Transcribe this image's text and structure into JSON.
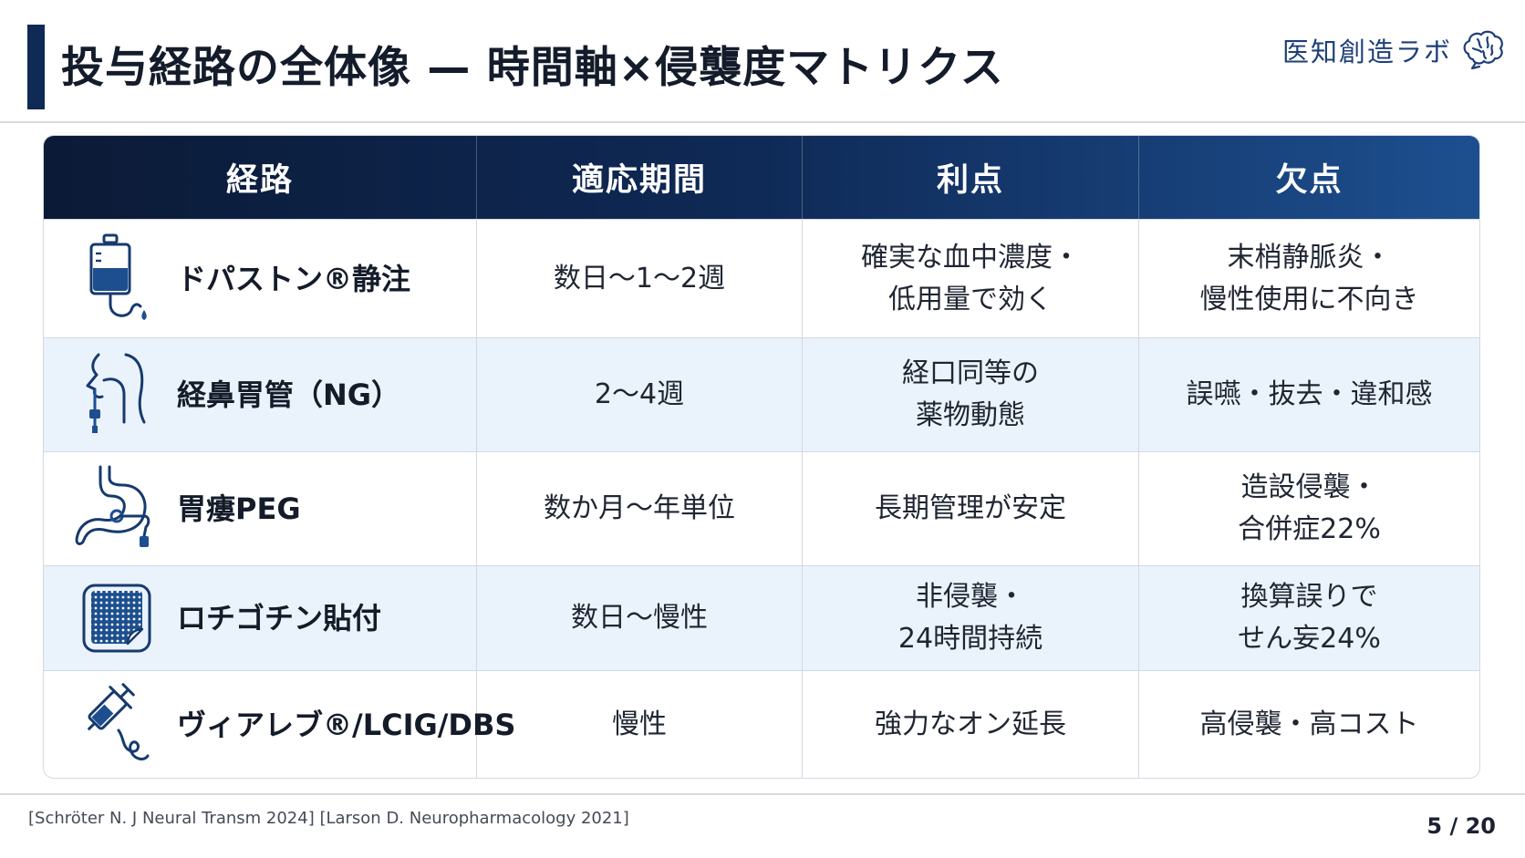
{
  "header": {
    "title": "投与経路の全体像 — 時間軸×侵襲度マトリクス",
    "brand": "医知創造ラボ",
    "brand_icon": "brain-icon"
  },
  "table": {
    "columns": [
      "経路",
      "適応期間",
      "利点",
      "欠点"
    ],
    "rows": [
      {
        "icon": "iv-drip-bag-icon",
        "route": "ドパストン®静注",
        "period": "数日〜1〜2週",
        "advantage": "確実な血中濃度・\n低用量で効く",
        "disadvantage": "末梢静脈炎・\n慢性使用に不向き"
      },
      {
        "icon": "nasogastric-tube-icon",
        "route": "経鼻胃管（NG）",
        "period": "2〜4週",
        "advantage": "経口同等の\n薬物動態",
        "disadvantage": "誤嚥・抜去・違和感"
      },
      {
        "icon": "stomach-peg-icon",
        "route": "胃瘻PEG",
        "period": "数か月〜年単位",
        "advantage": "長期管理が安定",
        "disadvantage": "造設侵襲・\n合併症22%"
      },
      {
        "icon": "transdermal-patch-icon",
        "route": "ロチゴチン貼付",
        "period": "数日〜慢性",
        "advantage": "非侵襲・\n24時間持続",
        "disadvantage": "換算誤りで\nせん妄24%"
      },
      {
        "icon": "syringe-pump-icon",
        "route": "ヴィアレブ®/LCIG/DBS",
        "period": "慢性",
        "advantage": "強力なオン延長",
        "disadvantage": "高侵襲・高コスト"
      }
    ]
  },
  "footer": {
    "citation": "[Schröter N. J Neural Transm 2024] [Larson D. Neuropharmacology 2021]",
    "page": "5 / 20"
  },
  "colors": {
    "title_accent": "#0f2a55",
    "header_gradient_start": "#0b1a36",
    "header_gradient_end": "#1d4f8f",
    "icon_blue": "#1d4f8f",
    "alt_row": "#eaf2fb"
  }
}
